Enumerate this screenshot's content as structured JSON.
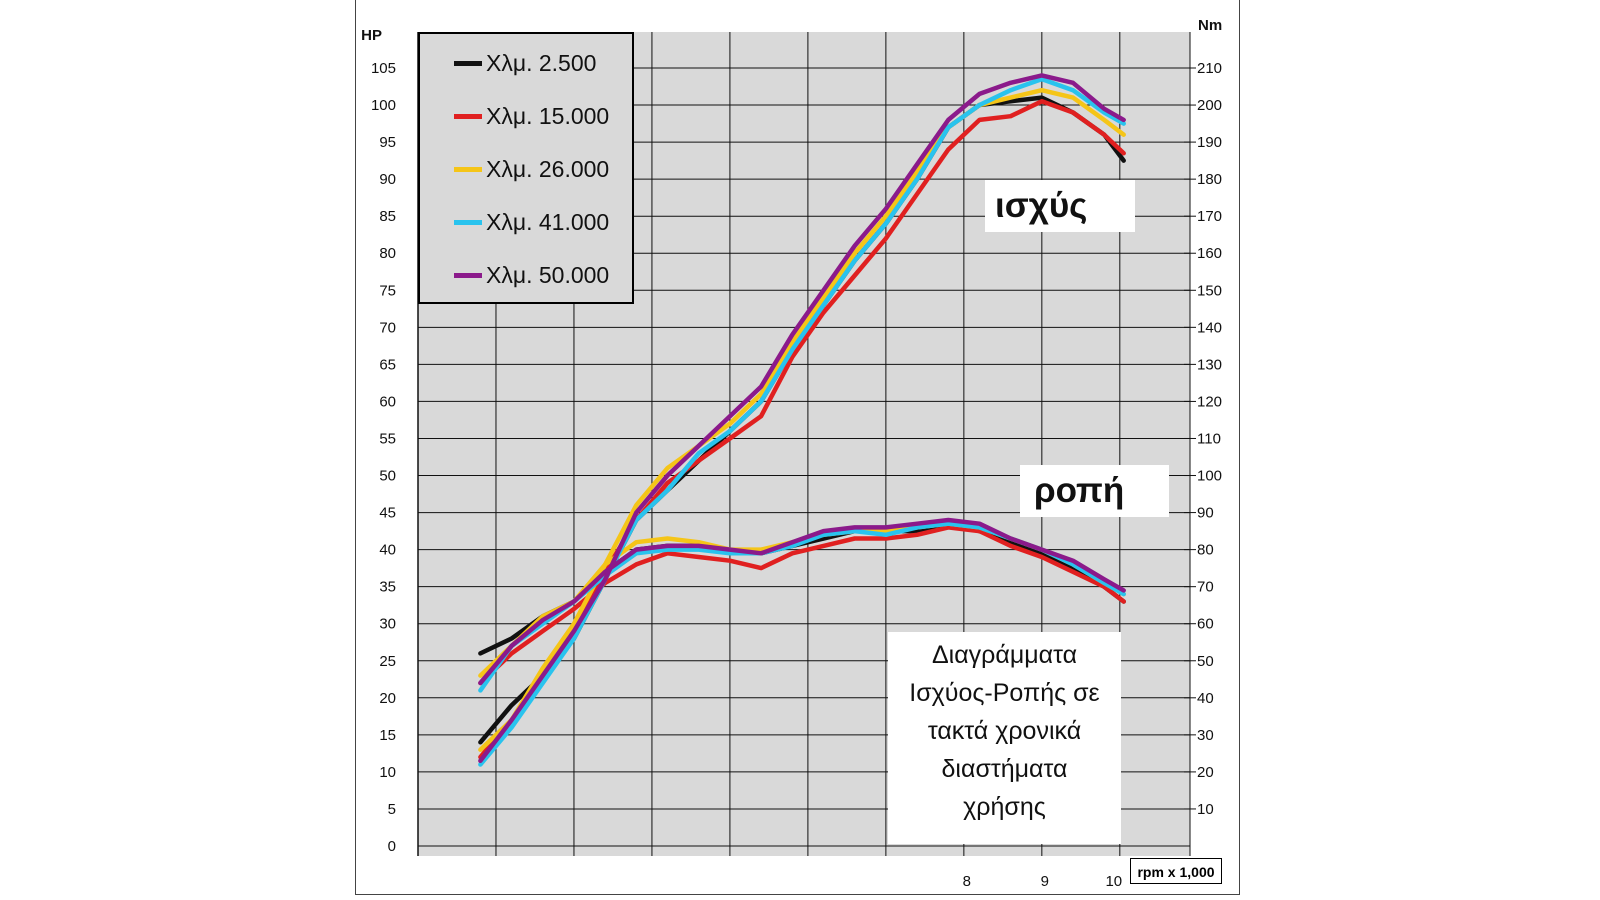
{
  "chart_data": {
    "type": "line",
    "left_axis": {
      "label": "HP",
      "min": 0,
      "max": 105,
      "ticks": [
        "0",
        "5",
        "10",
        "15",
        "20",
        "25",
        "30",
        "35",
        "40",
        "45",
        "50",
        "55",
        "60",
        "65",
        "70",
        "75",
        "80",
        "85",
        "90",
        "95",
        "100",
        "105"
      ]
    },
    "right_axis": {
      "label": "Nm",
      "ticks": [
        "10",
        "20",
        "30",
        "40",
        "50",
        "60",
        "70",
        "80",
        "90",
        "100",
        "110",
        "120",
        "130",
        "140",
        "150",
        "160",
        "170",
        "180",
        "190",
        "200",
        "210"
      ]
    },
    "x_axis": {
      "label": "rpm x 1,000",
      "ticks": [
        "8",
        "9",
        "10"
      ],
      "min": 1,
      "max": 10.9
    },
    "grid": true,
    "legend_position": "top-left",
    "annotations": {
      "power": "ισχύς",
      "torque": "ροπή"
    },
    "note": [
      "Διαγράμματα",
      "Ισχύος-Ροπής σε",
      "τακτά χρονικά",
      "διαστήματα",
      "χρήσης"
    ],
    "series": [
      {
        "name": "Χλμ. 2.500",
        "color": "#111111",
        "power": [
          [
            1.8,
            14
          ],
          [
            2.2,
            19
          ],
          [
            2.6,
            23
          ],
          [
            3.0,
            28
          ],
          [
            3.4,
            36
          ],
          [
            3.8,
            44
          ],
          [
            4.2,
            48
          ],
          [
            4.6,
            52
          ],
          [
            5.0,
            56
          ],
          [
            5.4,
            60
          ],
          [
            5.8,
            67
          ],
          [
            6.2,
            73
          ],
          [
            6.6,
            79
          ],
          [
            7.0,
            84
          ],
          [
            7.4,
            90
          ],
          [
            7.8,
            97
          ],
          [
            8.2,
            100
          ],
          [
            8.6,
            100.5
          ],
          [
            9.0,
            101
          ],
          [
            9.4,
            99
          ],
          [
            9.8,
            96
          ],
          [
            10.05,
            92.5
          ]
        ],
        "torque": [
          [
            1.8,
            26
          ],
          [
            2.2,
            28
          ],
          [
            2.6,
            31
          ],
          [
            3.0,
            33
          ],
          [
            3.4,
            37
          ],
          [
            3.8,
            40
          ],
          [
            4.2,
            40.5
          ],
          [
            4.6,
            40.5
          ],
          [
            5.0,
            40
          ],
          [
            5.4,
            39.5
          ],
          [
            5.8,
            40.5
          ],
          [
            6.2,
            41.5
          ],
          [
            6.6,
            42.5
          ],
          [
            7.0,
            42.5
          ],
          [
            7.4,
            42.5
          ],
          [
            7.8,
            43.5
          ],
          [
            8.2,
            42.5
          ],
          [
            8.6,
            41
          ],
          [
            9.0,
            39.5
          ],
          [
            9.4,
            37.5
          ],
          [
            9.8,
            35
          ],
          [
            10.05,
            33
          ]
        ]
      },
      {
        "name": "Χλμ. 15.000",
        "color": "#e02020",
        "power": [
          [
            1.8,
            12
          ],
          [
            2.2,
            17
          ],
          [
            2.6,
            23
          ],
          [
            3.0,
            29
          ],
          [
            3.4,
            37
          ],
          [
            3.8,
            44
          ],
          [
            4.2,
            49
          ],
          [
            4.6,
            52
          ],
          [
            5.0,
            55
          ],
          [
            5.4,
            58
          ],
          [
            5.8,
            66
          ],
          [
            6.2,
            72
          ],
          [
            6.6,
            77
          ],
          [
            7.0,
            82
          ],
          [
            7.4,
            88
          ],
          [
            7.8,
            94
          ],
          [
            8.2,
            98
          ],
          [
            8.6,
            98.5
          ],
          [
            9.0,
            100.5
          ],
          [
            9.4,
            99
          ],
          [
            9.8,
            96
          ],
          [
            10.05,
            93.5
          ]
        ],
        "torque": [
          [
            1.8,
            22
          ],
          [
            2.2,
            26
          ],
          [
            2.6,
            29
          ],
          [
            3.0,
            32
          ],
          [
            3.4,
            35.5
          ],
          [
            3.8,
            38
          ],
          [
            4.2,
            39.5
          ],
          [
            4.6,
            39
          ],
          [
            5.0,
            38.5
          ],
          [
            5.4,
            37.5
          ],
          [
            5.8,
            39.5
          ],
          [
            6.2,
            40.5
          ],
          [
            6.6,
            41.5
          ],
          [
            7.0,
            41.5
          ],
          [
            7.4,
            42
          ],
          [
            7.8,
            43
          ],
          [
            8.2,
            42.5
          ],
          [
            8.6,
            40.5
          ],
          [
            9.0,
            39
          ],
          [
            9.4,
            37
          ],
          [
            9.8,
            35
          ],
          [
            10.05,
            33
          ]
        ]
      },
      {
        "name": "Χλμ. 26.000",
        "color": "#f5c518",
        "power": [
          [
            1.8,
            13
          ],
          [
            2.2,
            17
          ],
          [
            2.6,
            24
          ],
          [
            3.0,
            30
          ],
          [
            3.4,
            38
          ],
          [
            3.8,
            46
          ],
          [
            4.2,
            51
          ],
          [
            4.6,
            54
          ],
          [
            5.0,
            57
          ],
          [
            5.4,
            61
          ],
          [
            5.8,
            68
          ],
          [
            6.2,
            74
          ],
          [
            6.6,
            80
          ],
          [
            7.0,
            85
          ],
          [
            7.4,
            91
          ],
          [
            7.8,
            97
          ],
          [
            8.2,
            100
          ],
          [
            8.6,
            101
          ],
          [
            9.0,
            102
          ],
          [
            9.4,
            101
          ],
          [
            9.8,
            98
          ],
          [
            10.05,
            96
          ]
        ],
        "torque": [
          [
            1.8,
            23
          ],
          [
            2.2,
            27
          ],
          [
            2.6,
            31
          ],
          [
            3.0,
            33
          ],
          [
            3.4,
            38
          ],
          [
            3.8,
            41
          ],
          [
            4.2,
            41.5
          ],
          [
            4.6,
            41
          ],
          [
            5.0,
            40
          ],
          [
            5.4,
            40
          ],
          [
            5.8,
            41
          ],
          [
            6.2,
            42
          ],
          [
            6.6,
            42.5
          ],
          [
            7.0,
            42.5
          ],
          [
            7.4,
            43
          ],
          [
            7.8,
            43.5
          ],
          [
            8.2,
            43
          ],
          [
            8.6,
            41.5
          ],
          [
            9.0,
            40
          ],
          [
            9.4,
            38
          ],
          [
            9.8,
            35.5
          ],
          [
            10.05,
            34
          ]
        ]
      },
      {
        "name": "Χλμ. 41.000",
        "color": "#29c3ee",
        "power": [
          [
            1.8,
            11
          ],
          [
            2.2,
            16
          ],
          [
            2.6,
            22
          ],
          [
            3.0,
            28
          ],
          [
            3.4,
            36
          ],
          [
            3.8,
            44
          ],
          [
            4.2,
            48
          ],
          [
            4.6,
            53
          ],
          [
            5.0,
            56
          ],
          [
            5.4,
            60
          ],
          [
            5.8,
            67
          ],
          [
            6.2,
            73
          ],
          [
            6.6,
            79
          ],
          [
            7.0,
            84
          ],
          [
            7.4,
            90
          ],
          [
            7.8,
            97
          ],
          [
            8.2,
            100
          ],
          [
            8.6,
            102
          ],
          [
            9.0,
            103.5
          ],
          [
            9.4,
            102
          ],
          [
            9.8,
            99
          ],
          [
            10.05,
            97.5
          ]
        ],
        "torque": [
          [
            1.8,
            21
          ],
          [
            2.2,
            27
          ],
          [
            2.6,
            30
          ],
          [
            3.0,
            33
          ],
          [
            3.4,
            36.5
          ],
          [
            3.8,
            39.5
          ],
          [
            4.2,
            40
          ],
          [
            4.6,
            40
          ],
          [
            5.0,
            39.5
          ],
          [
            5.4,
            39.5
          ],
          [
            5.8,
            40.5
          ],
          [
            6.2,
            42
          ],
          [
            6.6,
            42.5
          ],
          [
            7.0,
            42
          ],
          [
            7.4,
            43
          ],
          [
            7.8,
            43.5
          ],
          [
            8.2,
            43
          ],
          [
            8.6,
            41.5
          ],
          [
            9.0,
            40
          ],
          [
            9.4,
            38
          ],
          [
            9.8,
            35.5
          ],
          [
            10.05,
            34
          ]
        ]
      },
      {
        "name": "Χλμ. 50.000",
        "color": "#8b1a8b",
        "power": [
          [
            1.8,
            11.5
          ],
          [
            2.2,
            17
          ],
          [
            2.6,
            23
          ],
          [
            3.0,
            29
          ],
          [
            3.4,
            36
          ],
          [
            3.8,
            45
          ],
          [
            4.2,
            50
          ],
          [
            4.6,
            54
          ],
          [
            5.0,
            58
          ],
          [
            5.4,
            62
          ],
          [
            5.8,
            69
          ],
          [
            6.2,
            75
          ],
          [
            6.6,
            81
          ],
          [
            7.0,
            86
          ],
          [
            7.4,
            92
          ],
          [
            7.8,
            98
          ],
          [
            8.2,
            101.5
          ],
          [
            8.6,
            103
          ],
          [
            9.0,
            104
          ],
          [
            9.4,
            103
          ],
          [
            9.8,
            99.5
          ],
          [
            10.05,
            98
          ]
        ],
        "torque": [
          [
            1.8,
            22
          ],
          [
            2.2,
            27
          ],
          [
            2.6,
            30.5
          ],
          [
            3.0,
            33
          ],
          [
            3.4,
            37
          ],
          [
            3.8,
            40
          ],
          [
            4.2,
            40.5
          ],
          [
            4.6,
            40.5
          ],
          [
            5.0,
            40
          ],
          [
            5.4,
            39.5
          ],
          [
            5.8,
            41
          ],
          [
            6.2,
            42.5
          ],
          [
            6.6,
            43
          ],
          [
            7.0,
            43
          ],
          [
            7.4,
            43.5
          ],
          [
            7.8,
            44
          ],
          [
            8.2,
            43.5
          ],
          [
            8.6,
            41.5
          ],
          [
            9.0,
            40
          ],
          [
            9.4,
            38.5
          ],
          [
            9.8,
            36
          ],
          [
            10.05,
            34.5
          ]
        ]
      }
    ]
  }
}
